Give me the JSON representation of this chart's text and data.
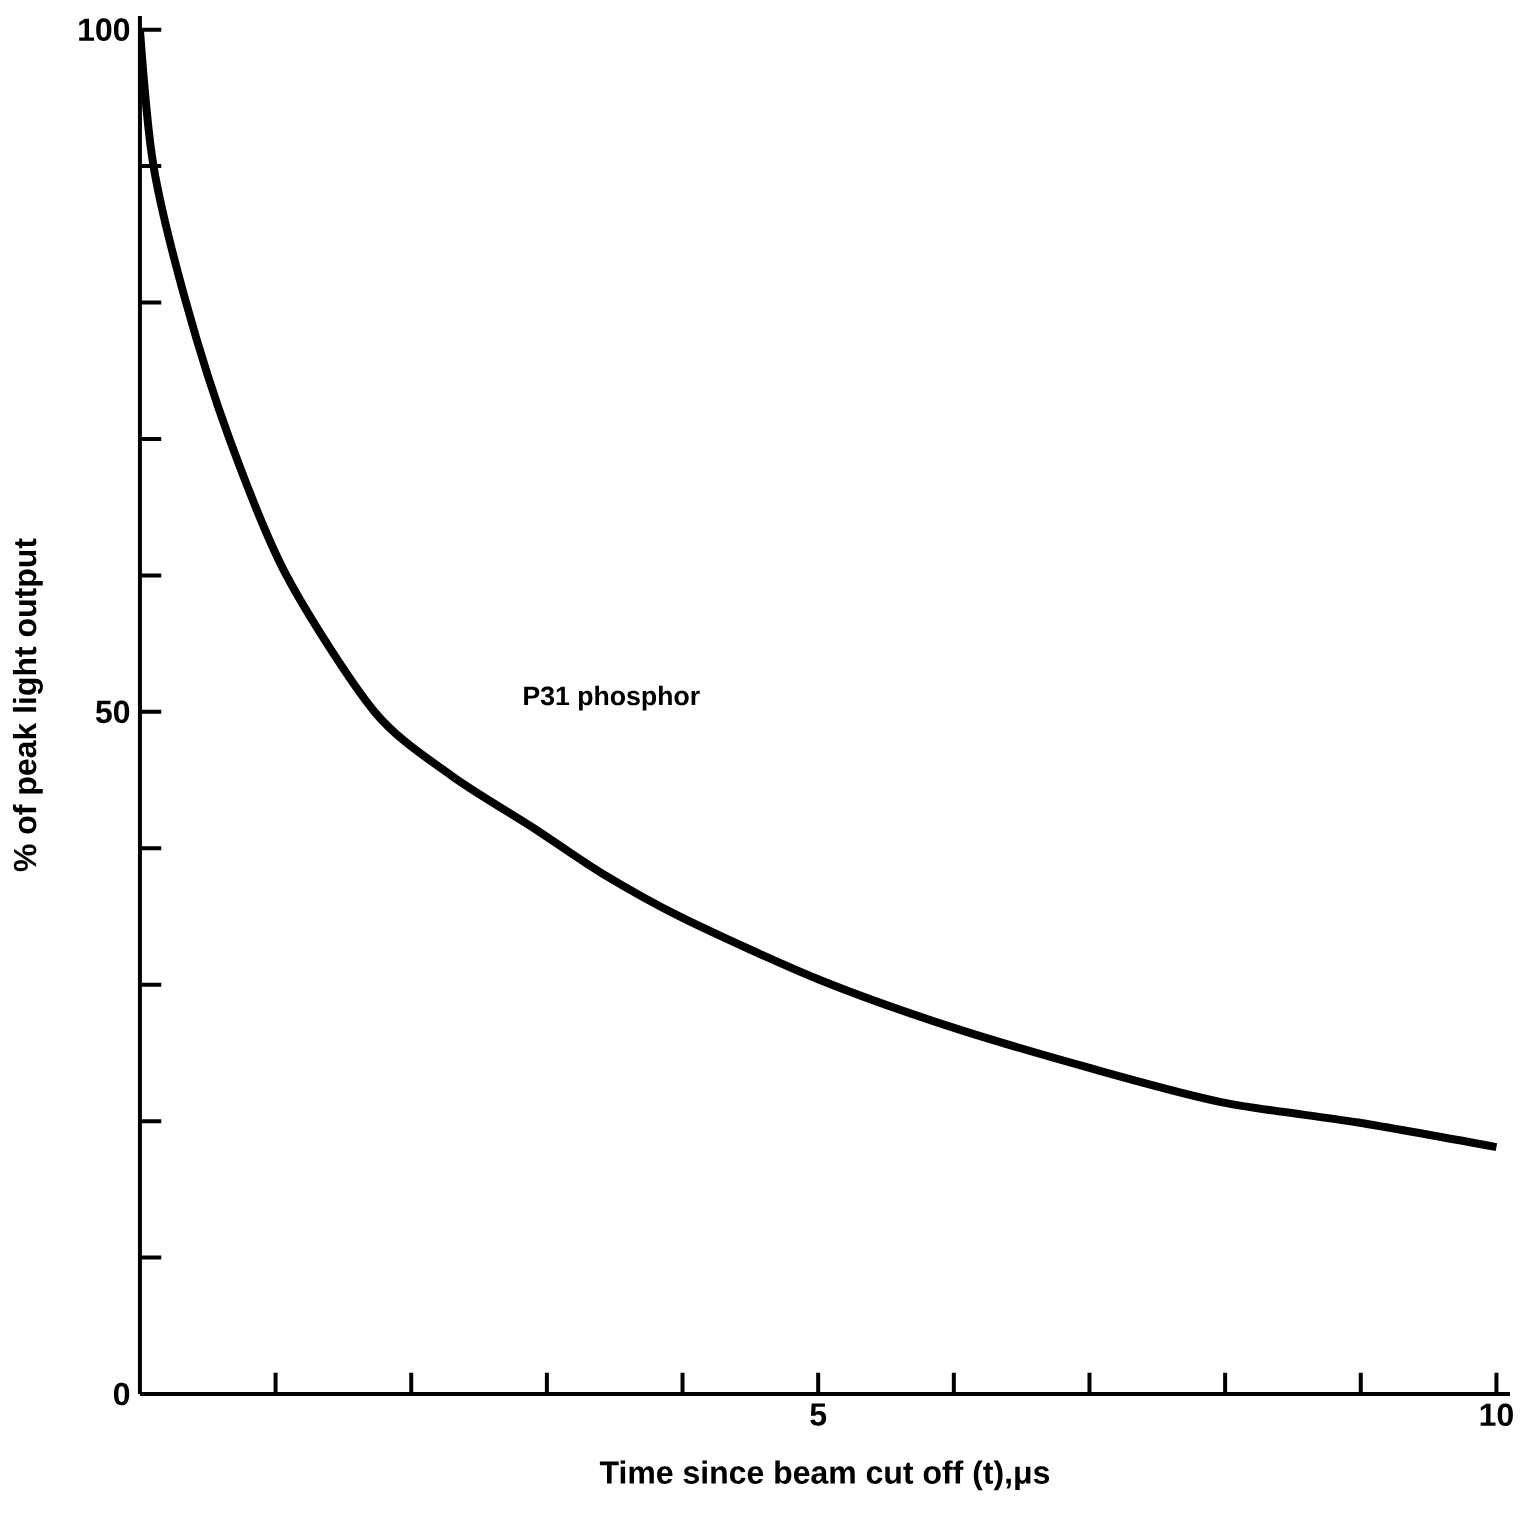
{
  "chart_data": {
    "type": "line",
    "xlabel": "Time since beam cut off (t),μs",
    "ylabel": "% of peak light output",
    "x": [
      0,
      0.1,
      0.34,
      0.66,
      1.08,
      1.73,
      2.3,
      2.9,
      3.4,
      4,
      5,
      5.95,
      7,
      7.97,
      8.98,
      10
    ],
    "series": [
      {
        "name": "P31 phosphor",
        "color": "#000000",
        "values": [
          100,
          90,
          80,
          70,
          60,
          50,
          45.3,
          41.5,
          38.2,
          34.9,
          30.4,
          27,
          23.9,
          21.4,
          19.9,
          18.1
        ]
      }
    ],
    "xlim": [
      0,
      10.1
    ],
    "ylim": [
      0,
      101
    ],
    "xticks": [
      {
        "value": 1,
        "label": null
      },
      {
        "value": 2,
        "label": null
      },
      {
        "value": 3,
        "label": null
      },
      {
        "value": 4,
        "label": null
      },
      5,
      {
        "value": 6,
        "label": null
      },
      {
        "value": 7,
        "label": null
      },
      {
        "value": 8,
        "label": null
      },
      {
        "value": 9,
        "label": null
      },
      10
    ],
    "yticks": [
      0,
      {
        "value": 10,
        "label": null
      },
      {
        "value": 20,
        "label": null
      },
      {
        "value": 30,
        "label": null
      },
      {
        "value": 40,
        "label": null
      },
      50,
      {
        "value": 60,
        "label": null
      },
      {
        "value": 70,
        "label": null
      },
      {
        "value": 80,
        "label": null
      },
      {
        "value": 90,
        "label": null
      },
      100
    ],
    "grid": false,
    "legend": false,
    "marker": "none",
    "line_style": "solid"
  }
}
